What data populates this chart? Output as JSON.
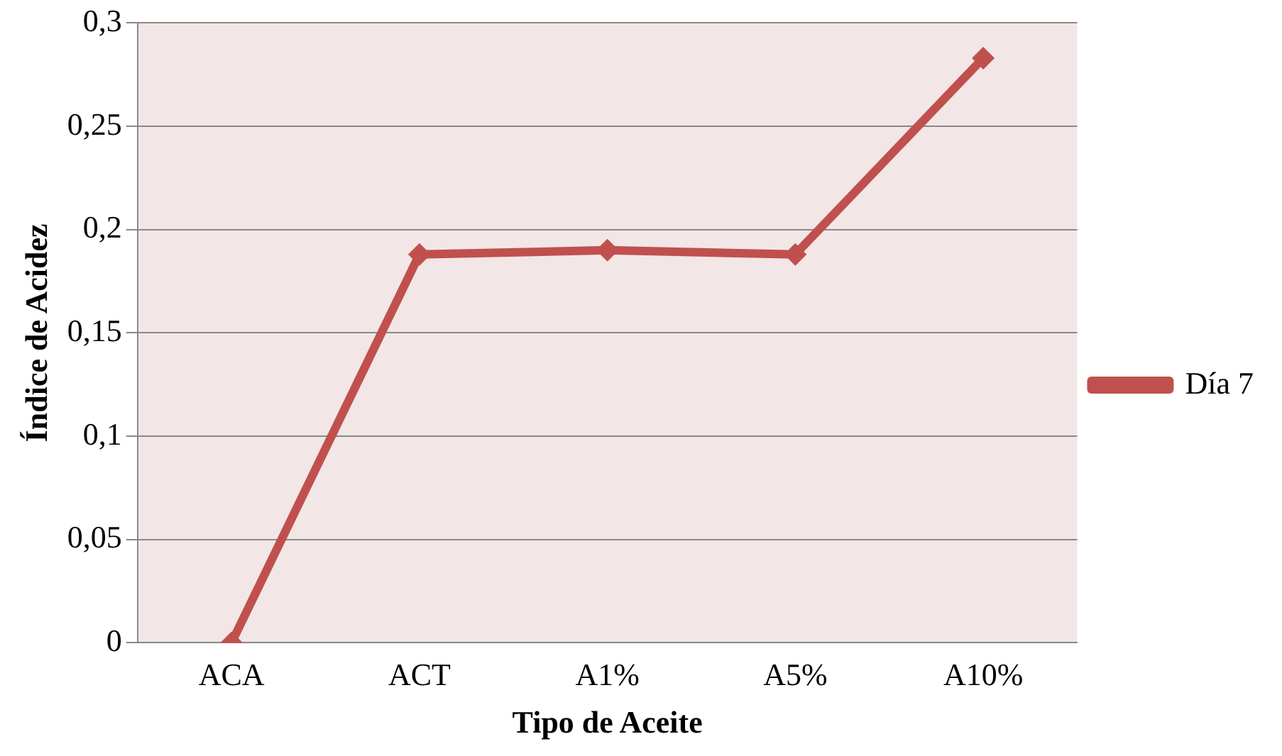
{
  "chart_data": {
    "type": "line",
    "xlabel": "Tipo de Aceite",
    "ylabel": "Índice de Acidez",
    "categories": [
      "ACA",
      "ACT",
      "A1%",
      "A5%",
      "A10%"
    ],
    "series": [
      {
        "name": "Día 7",
        "color": "#c0504d",
        "values": [
          0,
          0.188,
          0.19,
          0.188,
          0.283
        ]
      }
    ],
    "ylim": [
      0,
      0.3
    ],
    "yticks": [
      {
        "value": 0,
        "label": "0"
      },
      {
        "value": 0.05,
        "label": "0,05"
      },
      {
        "value": 0.1,
        "label": "0,1"
      },
      {
        "value": 0.15,
        "label": "0,15"
      },
      {
        "value": 0.2,
        "label": "0,2"
      },
      {
        "value": 0.25,
        "label": "0,25"
      },
      {
        "value": 0.3,
        "label": "0,3"
      }
    ],
    "grid": "y",
    "legend": "right",
    "marker": "diamond",
    "line_style": "solid"
  }
}
